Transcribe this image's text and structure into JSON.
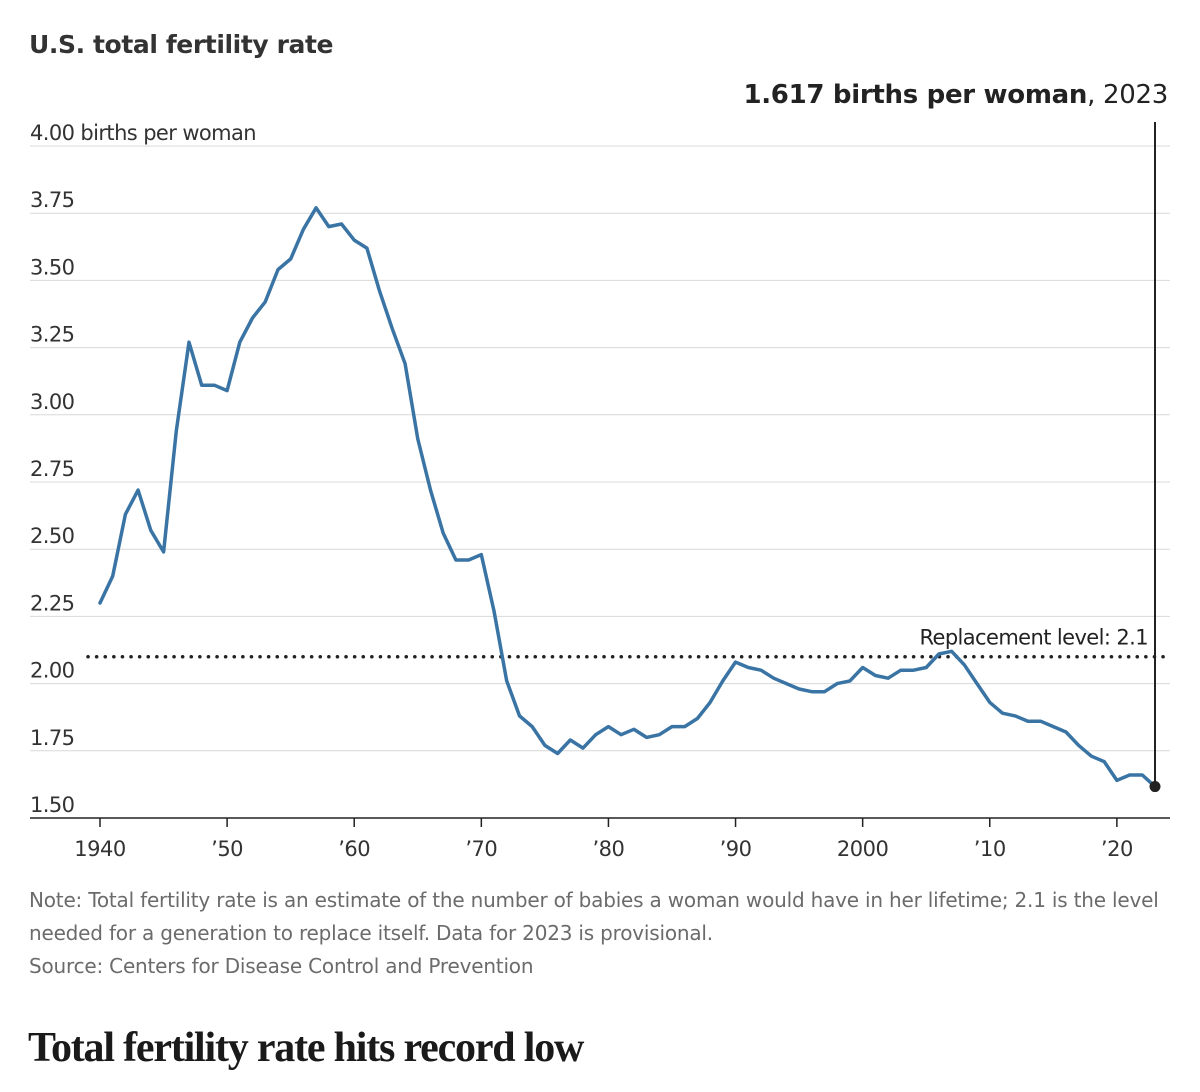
{
  "title": "U.S. total fertility rate",
  "callout": {
    "value": "1.617 births per woman",
    "year": ", 2023"
  },
  "note": "Note: Total fertility rate is an estimate of the number of babies a woman would have in her lifetime; 2.1 is the level needed for a generation to replace itself. Data for 2023 is provisional.",
  "source": "Source: Centers for Disease Control and Prevention",
  "headline": "Total fertility rate hits record low",
  "colors": {
    "line": "#3a74a4",
    "grid": "#d8d8d8",
    "axis": "#222222",
    "replacement": "#222222"
  },
  "chart_data": {
    "type": "line",
    "title": "U.S. total fertility rate",
    "ylabel": "births per woman",
    "ylim": [
      1.5,
      4.0
    ],
    "xlim": [
      1940,
      2023
    ],
    "y_ticks": [
      {
        "value": 4.0,
        "label": "4.00 births per woman"
      },
      {
        "value": 3.75,
        "label": "3.75"
      },
      {
        "value": 3.5,
        "label": "3.50"
      },
      {
        "value": 3.25,
        "label": "3.25"
      },
      {
        "value": 3.0,
        "label": "3.00"
      },
      {
        "value": 2.75,
        "label": "2.75"
      },
      {
        "value": 2.5,
        "label": "2.50"
      },
      {
        "value": 2.25,
        "label": "2.25"
      },
      {
        "value": 2.0,
        "label": "2.00"
      },
      {
        "value": 1.75,
        "label": "1.75"
      },
      {
        "value": 1.5,
        "label": "1.50"
      }
    ],
    "x_ticks": [
      {
        "value": 1940,
        "label": "1940"
      },
      {
        "value": 1950,
        "label": "’50"
      },
      {
        "value": 1960,
        "label": "’60"
      },
      {
        "value": 1970,
        "label": "’70"
      },
      {
        "value": 1980,
        "label": "’80"
      },
      {
        "value": 1990,
        "label": "’90"
      },
      {
        "value": 2000,
        "label": "2000"
      },
      {
        "value": 2010,
        "label": "’10"
      },
      {
        "value": 2020,
        "label": "’20"
      }
    ],
    "grid": true,
    "reference_line": {
      "value": 2.1,
      "label": "Replacement level: 2.1",
      "style": "dotted"
    },
    "highlight": {
      "x": 2023,
      "y": 1.617
    },
    "series": [
      {
        "x": [
          1940,
          1941,
          1942,
          1943,
          1944,
          1945,
          1946,
          1947,
          1948,
          1949,
          1950,
          1951,
          1952,
          1953,
          1954,
          1955,
          1956,
          1957,
          1958,
          1959,
          1960,
          1961,
          1962,
          1963,
          1964,
          1965,
          1966,
          1967,
          1968,
          1969,
          1970,
          1971,
          1972,
          1973,
          1974,
          1975,
          1976,
          1977,
          1978,
          1979,
          1980,
          1981,
          1982,
          1983,
          1984,
          1985,
          1986,
          1987,
          1988,
          1989,
          1990,
          1991,
          1992,
          1993,
          1994,
          1995,
          1996,
          1997,
          1998,
          1999,
          2000,
          2001,
          2002,
          2003,
          2004,
          2005,
          2006,
          2007,
          2008,
          2009,
          2010,
          2011,
          2012,
          2013,
          2014,
          2015,
          2016,
          2017,
          2018,
          2019,
          2020,
          2021,
          2022,
          2023
        ],
        "values": [
          2.3,
          2.4,
          2.63,
          2.72,
          2.57,
          2.49,
          2.94,
          3.27,
          3.11,
          3.11,
          3.09,
          3.27,
          3.36,
          3.42,
          3.54,
          3.58,
          3.69,
          3.77,
          3.7,
          3.71,
          3.65,
          3.62,
          3.46,
          3.32,
          3.19,
          2.91,
          2.72,
          2.56,
          2.46,
          2.46,
          2.48,
          2.27,
          2.01,
          1.88,
          1.84,
          1.77,
          1.74,
          1.79,
          1.76,
          1.81,
          1.84,
          1.81,
          1.83,
          1.8,
          1.81,
          1.84,
          1.84,
          1.87,
          1.93,
          2.01,
          2.08,
          2.06,
          2.05,
          2.02,
          2.0,
          1.98,
          1.97,
          1.97,
          2.0,
          2.01,
          2.06,
          2.03,
          2.02,
          2.05,
          2.05,
          2.06,
          2.11,
          2.12,
          2.07,
          2.0,
          1.93,
          1.89,
          1.88,
          1.86,
          1.86,
          1.84,
          1.82,
          1.77,
          1.73,
          1.71,
          1.64,
          1.66,
          1.66,
          1.617
        ]
      }
    ]
  }
}
